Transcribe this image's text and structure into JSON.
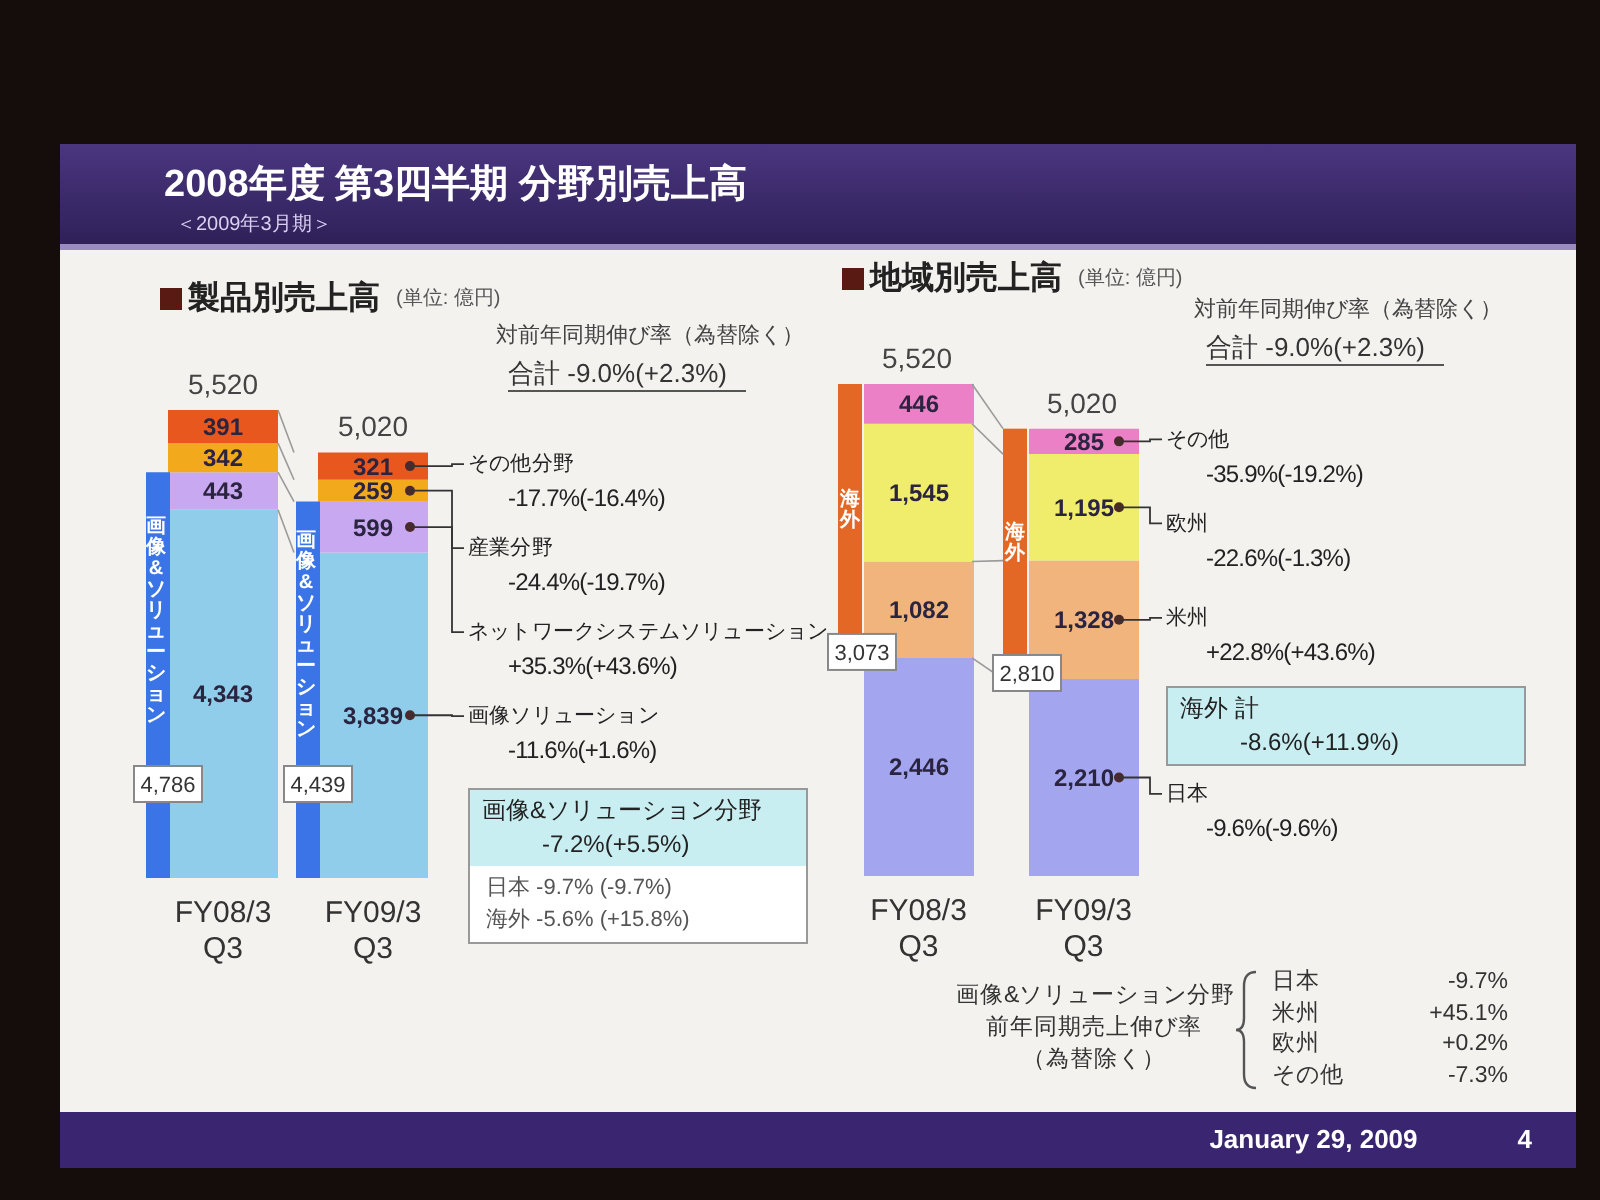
{
  "chart_data": [
    {
      "type": "other",
      "title": "2008年度 第3四半期 分野別売上高",
      "subtitle": "＜2009年3月期＞",
      "annotations": [
        "January 29, 2009",
        "4"
      ]
    },
    {
      "type": "bar",
      "stacked": true,
      "title": "製品別売上高",
      "subtitle": "(単位: 億円)",
      "categories": [
        "FY08/3 Q3",
        "FY09/3 Q3"
      ],
      "series": [
        {
          "name": "画像ソリューション",
          "color": "#8fcdea",
          "values": [
            4343,
            3839
          ],
          "value_labels": [
            "4,343",
            "3,839"
          ]
        },
        {
          "name": "ネットワークシステムソリューション",
          "color": "#c8a8f0",
          "values": [
            443,
            599
          ],
          "value_labels": [
            "443",
            "599"
          ]
        },
        {
          "name": "産業分野",
          "color": "#f2a91c",
          "values": [
            342,
            259
          ],
          "value_labels": [
            "342",
            "259"
          ]
        },
        {
          "name": "その他分野",
          "color": "#e8581e",
          "values": [
            391,
            321
          ],
          "value_labels": [
            "391",
            "321"
          ]
        }
      ],
      "totals": [
        "5,520",
        "5,020"
      ],
      "annotations": [
        "対前年同期伸び率（為替除く）",
        "合計 -9.0%(+2.3%)",
        "-17.7%(-16.4%)",
        "-24.4%(-19.7%)",
        "+35.3%(+43.6%)",
        "-11.6%(+1.6%)",
        "画像&ソリューション分野 -7.2%(+5.5%)",
        "日本 -9.7% (-9.7%)",
        "海外 -5.6% (+15.8%)"
      ]
    },
    {
      "type": "bar",
      "categories": [
        "FY08/3 Q3",
        "FY09/3 Q3"
      ],
      "tick_labels": false,
      "series": [
        {
          "name": "画像&ソリューション",
          "color": "#3a74e6",
          "values": [
            4786,
            4439
          ],
          "value_labels": [
            "4,786",
            "4,439"
          ]
        }
      ]
    },
    {
      "type": "bar",
      "stacked": true,
      "title": "地域別売上高",
      "subtitle": "(単位: 億円)",
      "categories": [
        "FY08/3 Q3",
        "FY09/3 Q3"
      ],
      "series": [
        {
          "name": "日本",
          "color": "#a3a6ef",
          "values": [
            2446,
            2210
          ],
          "value_labels": [
            "2,446",
            "2,210"
          ]
        },
        {
          "name": "米州",
          "color": "#f0b47c",
          "values": [
            1082,
            1328
          ],
          "value_labels": [
            "1,082",
            "1,328"
          ]
        },
        {
          "name": "欧州",
          "color": "#f0ec6c",
          "values": [
            1545,
            1195
          ],
          "value_labels": [
            "1,545",
            "1,195"
          ]
        },
        {
          "name": "その他",
          "color": "#ec80c6",
          "values": [
            446,
            285
          ],
          "value_labels": [
            "446",
            "285"
          ]
        }
      ],
      "totals": [
        "5,520",
        "5,020"
      ],
      "annotations": [
        "対前年同期伸び率（為替除く）",
        "合計 -9.0%(+2.3%)",
        "-35.9%(-19.2%)",
        "-22.6%(-1.3%)",
        "+22.8%(+43.6%)",
        "-9.6%(-9.6%)",
        "海外 計 -8.6%(+11.9%)",
        "海外",
        "海外",
        {
          "text": "3,073",
          "x": "FY08/3 Q3",
          "y": 2446
        },
        {
          "text": "2,810",
          "x": "FY09/3 Q3",
          "y": 2210
        }
      ]
    },
    {
      "type": "other",
      "title": "画像&ソリューション分野",
      "subtitle": "前年同期売上伸び率（為替除く）",
      "annotations": [
        "日本 -9.7%",
        "米州 +45.1%",
        "欧州 +0.2%",
        "その他 -7.3%"
      ]
    }
  ]
}
